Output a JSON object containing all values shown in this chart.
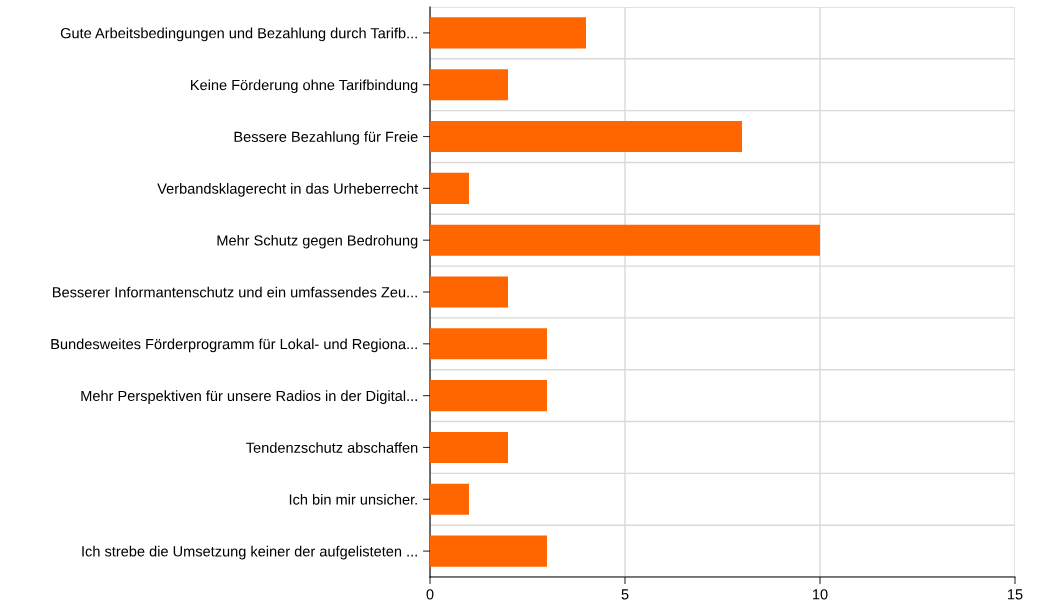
{
  "chart_data": {
    "type": "bar",
    "orientation": "horizontal",
    "categories": [
      "Gute Arbeitsbedingungen und Bezahlung durch Tarifb...",
      "Keine Förderung ohne Tarifbindung",
      "Bessere Bezahlung für Freie",
      "Verbandsklagerecht in das Urheberrecht",
      "Mehr Schutz gegen Bedrohung",
      "Besserer Informantenschutz und ein umfassendes Zeu...",
      "Bundesweites Förderprogramm für Lokal- und Regiona...",
      "Mehr Perspektiven für unsere Radios in der Digital...",
      "Tendenzschutz abschaffen",
      "Ich bin mir unsicher.",
      "Ich strebe die Umsetzung keiner der aufgelisteten ..."
    ],
    "values": [
      4,
      2,
      8,
      1,
      10,
      2,
      3,
      3,
      2,
      1,
      3
    ],
    "color": "#ff6600",
    "xlim": [
      0,
      15
    ],
    "xticks": [
      0,
      5,
      10,
      15
    ],
    "grid": true
  }
}
